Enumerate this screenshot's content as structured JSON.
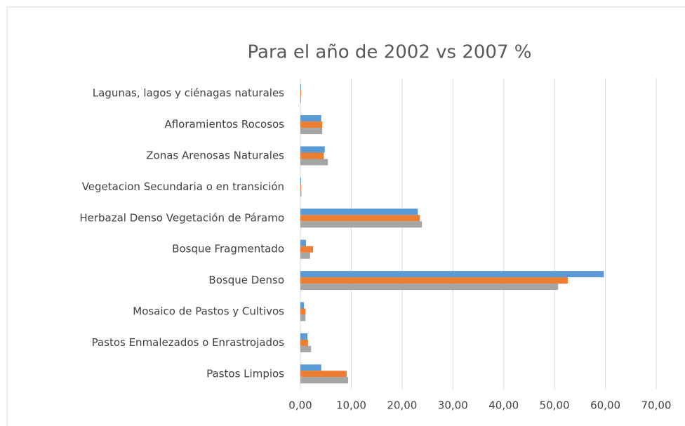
{
  "chart_data": {
    "type": "bar",
    "orientation": "horizontal",
    "title": "Para el año de 2002 vs 2007 %",
    "categories": [
      "Lagunas, lagos y ciénagas naturales",
      "Afloramientos Rocosos",
      "Zonas Arenosas Naturales",
      "Vegetacion Secundaria o en transición",
      "Herbazal Denso Vegetación de Páramo",
      "Bosque Fragmentado",
      "Bosque Denso",
      "Mosaico de Pastos y Cultivos",
      "Pastos Enmalezados o Enrastrojados",
      "Pastos Limpios"
    ],
    "series": [
      {
        "color": "#5b9bd5",
        "values": [
          0.1,
          4.1,
          4.8,
          0.1,
          23.1,
          1.1,
          59.7,
          0.7,
          1.4,
          4.1
        ]
      },
      {
        "color": "#ed7d31",
        "values": [
          0.1,
          4.3,
          4.6,
          0.1,
          23.5,
          2.5,
          52.6,
          1.0,
          1.5,
          9.1
        ]
      },
      {
        "color": "#a5a5a5",
        "values": [
          0.1,
          4.3,
          5.4,
          0.2,
          23.9,
          1.9,
          50.7,
          1.0,
          2.1,
          9.4
        ]
      }
    ],
    "xlim": [
      0,
      70
    ],
    "xticks": [
      {
        "value": 0,
        "label": "0,00"
      },
      {
        "value": 10,
        "label": "10,00"
      },
      {
        "value": 20,
        "label": "20,00"
      },
      {
        "value": 30,
        "label": "30,00"
      },
      {
        "value": 40,
        "label": "40,00"
      },
      {
        "value": 50,
        "label": "50,00"
      },
      {
        "value": 60,
        "label": "60,00"
      },
      {
        "value": 70,
        "label": "70,00"
      }
    ],
    "grid": true
  }
}
